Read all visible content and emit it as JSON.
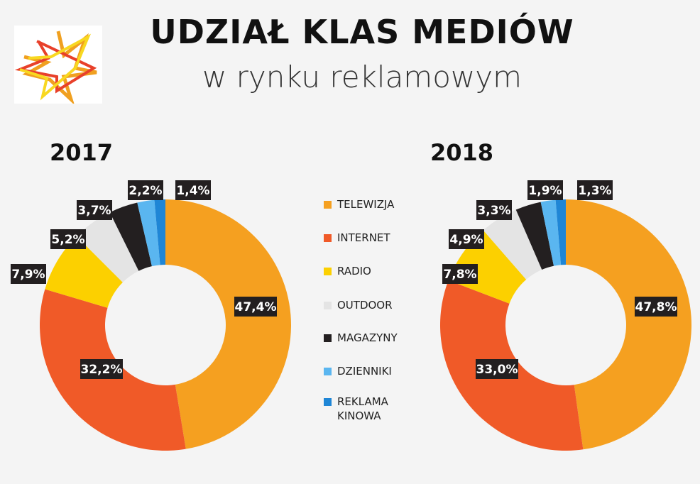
{
  "title": "UDZIAŁ KLAS MEDIÓW",
  "subtitle": "w rynku reklamowym",
  "logo": {
    "icon": "star-outline-logo",
    "colors": [
      "#f0a020",
      "#e8402a",
      "#f8d820"
    ]
  },
  "chart_data": [
    {
      "type": "pie",
      "variant": "donut",
      "title": "2017",
      "categories": [
        "TELEWIZJA",
        "INTERNET",
        "RADIO",
        "OUTDOOR",
        "MAGAZYNY",
        "DZIENNIKI",
        "REKLAMA KINOWA"
      ],
      "values": [
        47.4,
        32.2,
        7.9,
        5.2,
        3.7,
        2.2,
        1.4
      ],
      "labels": [
        "47,4%",
        "32,2%",
        "7,9%",
        "5,2%",
        "3,7%",
        "2,2%",
        "1,4%"
      ],
      "unit": "%"
    },
    {
      "type": "pie",
      "variant": "donut",
      "title": "2018",
      "categories": [
        "TELEWIZJA",
        "INTERNET",
        "RADIO",
        "OUTDOOR",
        "MAGAZYNY",
        "DZIENNIKI",
        "REKLAMA KINOWA"
      ],
      "values": [
        47.8,
        33.0,
        7.8,
        4.9,
        3.3,
        1.9,
        1.3
      ],
      "labels": [
        "47,8%",
        "33,0%",
        "7,8%",
        "4,9%",
        "3,3%",
        "1,9%",
        "1,3%"
      ],
      "unit": "%"
    }
  ],
  "legend": {
    "placement": "center",
    "items": [
      {
        "label": "TELEWIZJA",
        "color": "#f5a020"
      },
      {
        "label": "INTERNET",
        "color": "#f05a28"
      },
      {
        "label": "RADIO",
        "color": "#fcd000"
      },
      {
        "label": "OUTDOOR",
        "color": "#e4e4e4"
      },
      {
        "label": "MAGAZYNY",
        "color": "#231f20"
      },
      {
        "label": "DZIENNIKI",
        "color": "#5ab6f0"
      },
      {
        "label": "REKLAMA\nKINOWA",
        "color": "#1f86d6"
      }
    ]
  }
}
